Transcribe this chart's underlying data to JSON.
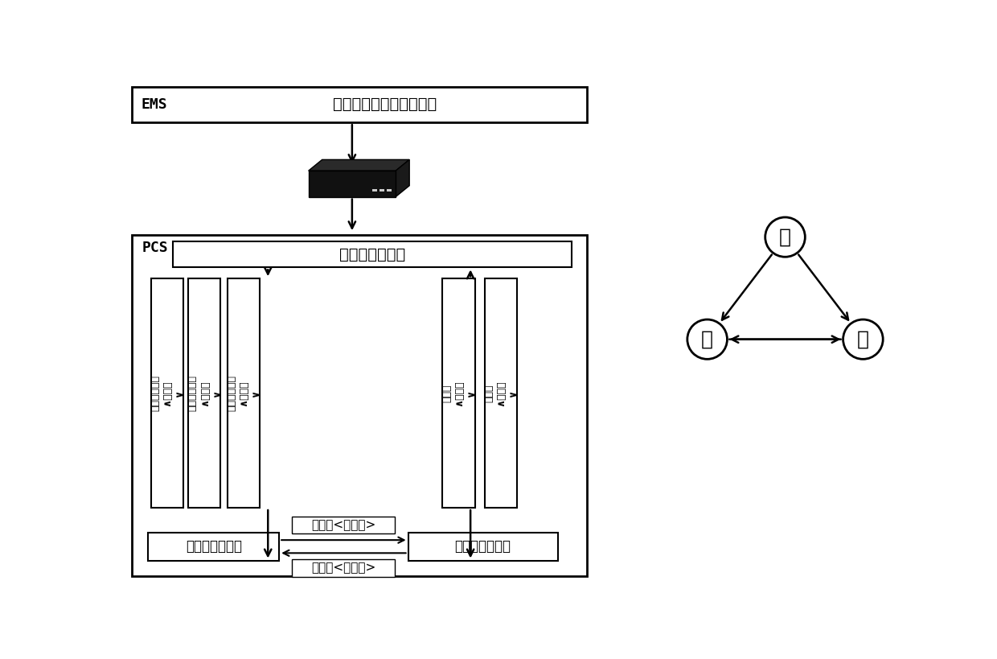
{
  "bg_color": "#ffffff",
  "title_ems": "EMS",
  "title_ems_content": "微网能量管理（控制器）",
  "title_pcs": "PCS",
  "pcs_top_label": "微电网并网运行",
  "box1_label": "微电网孤网运行",
  "box2_label": "微电网全量状态",
  "arrow1_label": "转全量<计划型>",
  "arrow2_label": "黑启动<计划型>",
  "vbox_left_texts": [
    "并网切换预测\n∧计划型\n∨",
    "并网切换预测\n∧实发型\n∨",
    "孤网切换预测\n∧计划型\n∨"
  ],
  "vbox_right_texts": [
    "转全量\n∧计划型\n∨",
    "黑启动\n∧计划型\n∨"
  ],
  "node_bing": "并",
  "node_gu": "孤",
  "node_hei": "黑"
}
